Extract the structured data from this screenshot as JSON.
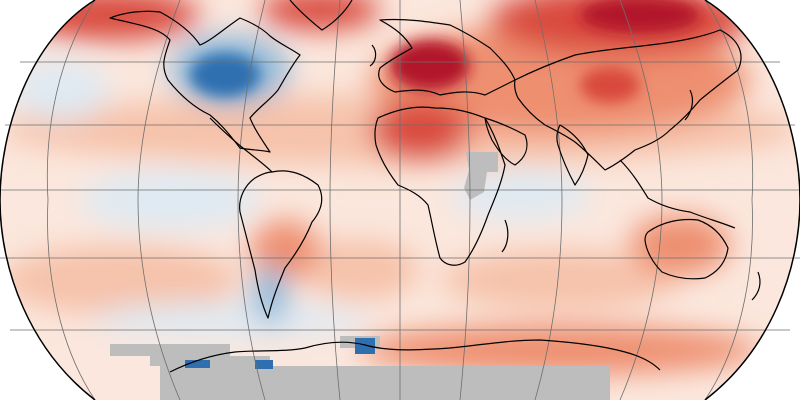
{
  "map": {
    "projection": "robinson-style",
    "colors": {
      "background": "#ffffff",
      "ocean_base": "#fbe7dd",
      "warm_light": "#f6c2aa",
      "warm_mid": "#ee8f6f",
      "warm_strong": "#d9493d",
      "warm_extreme": "#b2182b",
      "cool_light": "#dfeaf3",
      "cool_mid": "#8fb9da",
      "cool_strong": "#2f6fb0",
      "no_data": "#bdbdbd",
      "coast": "#000000",
      "graticule": "#6e6e6e",
      "outline": "#000000"
    },
    "features": [
      {
        "name": "eurasia",
        "tone": "warm_mid"
      },
      {
        "name": "europe-hotspot",
        "tone": "warm_extreme"
      },
      {
        "name": "north-america-cool",
        "tone": "cool_strong"
      },
      {
        "name": "south-america",
        "tone": "warm_light"
      },
      {
        "name": "africa",
        "tone": "warm_light"
      },
      {
        "name": "east-africa-no-data",
        "tone": "no_data"
      },
      {
        "name": "australia",
        "tone": "warm_mid"
      },
      {
        "name": "antarctica",
        "tone": "warm_light"
      },
      {
        "name": "antarctic-no-data",
        "tone": "no_data"
      }
    ]
  }
}
